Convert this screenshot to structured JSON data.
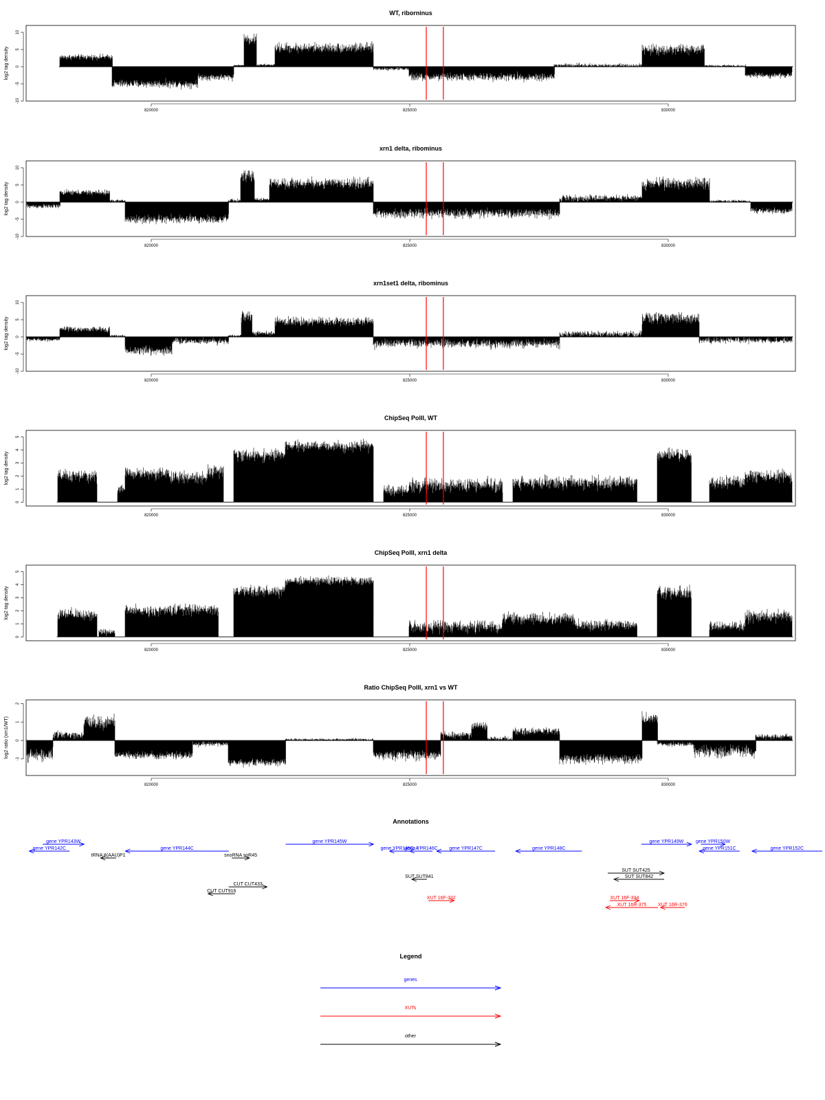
{
  "chart_data": [
    {
      "type": "area",
      "title": "WT, riborninus",
      "ylabel": "log2 tag density",
      "xlim": [
        817580,
        832460
      ],
      "ylim": [
        -10,
        12
      ],
      "yticks": [
        -10,
        -5,
        0,
        5,
        10
      ],
      "xticks": [
        820000,
        825000,
        830000
      ],
      "markers": [
        825320,
        825650
      ],
      "segments": [
        {
          "x": [
            818240,
            819250
          ],
          "level": 2.8,
          "var": 1.2
        },
        {
          "x": [
            819250,
            820900
          ],
          "level": -5.0,
          "var": 1.8
        },
        {
          "x": [
            820900,
            821600
          ],
          "level": -3.0,
          "var": 1.5
        },
        {
          "x": [
            821600,
            821800
          ],
          "level": 0.4,
          "var": 0.3
        },
        {
          "x": [
            821800,
            822040
          ],
          "level": 8.0,
          "var": 2.5
        },
        {
          "x": [
            822040,
            822400
          ],
          "level": 0.5,
          "var": 0.5
        },
        {
          "x": [
            822400,
            824300
          ],
          "level": 5.5,
          "var": 2.2
        },
        {
          "x": [
            824300,
            825000
          ],
          "level": -0.6,
          "var": 0.8
        },
        {
          "x": [
            825000,
            827800
          ],
          "level": -3.0,
          "var": 1.8
        },
        {
          "x": [
            827800,
            829500
          ],
          "level": 0.4,
          "var": 0.9
        },
        {
          "x": [
            829500,
            830700
          ],
          "level": 5.0,
          "var": 2.3
        },
        {
          "x": [
            830700,
            831500
          ],
          "level": 0.3,
          "var": 0.5
        },
        {
          "x": [
            831500,
            832400
          ],
          "level": -2.5,
          "var": 1.2
        }
      ]
    },
    {
      "type": "area",
      "title": "xrn1 delta, ribominus",
      "ylabel": "log2 tag density",
      "xlim": [
        817580,
        832460
      ],
      "ylim": [
        -10,
        12
      ],
      "yticks": [
        -10,
        -5,
        0,
        5,
        10
      ],
      "xticks": [
        820000,
        825000,
        830000
      ],
      "markers": [
        825320,
        825650
      ],
      "segments": [
        {
          "x": [
            817600,
            818240
          ],
          "level": -1.2,
          "var": 1.0
        },
        {
          "x": [
            818240,
            819200
          ],
          "level": 2.8,
          "var": 1.2
        },
        {
          "x": [
            819200,
            819500
          ],
          "level": 0.4,
          "var": 0.6
        },
        {
          "x": [
            819500,
            821500
          ],
          "level": -5.0,
          "var": 2.0
        },
        {
          "x": [
            821500,
            821740
          ],
          "level": 0.5,
          "var": 0.8
        },
        {
          "x": [
            821740,
            822000
          ],
          "level": 7.5,
          "var": 2.5
        },
        {
          "x": [
            822000,
            822300
          ],
          "level": 0.8,
          "var": 0.7
        },
        {
          "x": [
            822300,
            824300
          ],
          "level": 5.5,
          "var": 2.3
        },
        {
          "x": [
            824300,
            827900
          ],
          "level": -3.3,
          "var": 2.0
        },
        {
          "x": [
            827900,
            829500
          ],
          "level": 1.2,
          "var": 1.4
        },
        {
          "x": [
            829500,
            830800
          ],
          "level": 5.5,
          "var": 2.5
        },
        {
          "x": [
            830800,
            831600
          ],
          "level": 0.3,
          "var": 0.6
        },
        {
          "x": [
            831600,
            832400
          ],
          "level": -2.5,
          "var": 1.3
        }
      ]
    },
    {
      "type": "area",
      "title": "xrn1set1 delta, ribominus",
      "ylabel": "log2 tag density",
      "xlim": [
        817580,
        832460
      ],
      "ylim": [
        -10,
        12
      ],
      "yticks": [
        -10,
        -5,
        0,
        5,
        10
      ],
      "xticks": [
        820000,
        825000,
        830000
      ],
      "markers": [
        825320,
        825650
      ],
      "segments": [
        {
          "x": [
            817600,
            818240
          ],
          "level": -0.8,
          "var": 0.8
        },
        {
          "x": [
            818240,
            819200
          ],
          "level": 2.2,
          "var": 1.2
        },
        {
          "x": [
            819200,
            819500
          ],
          "level": 0.3,
          "var": 0.5
        },
        {
          "x": [
            819500,
            820400
          ],
          "level": -4.0,
          "var": 2.2
        },
        {
          "x": [
            820400,
            821500
          ],
          "level": -1.2,
          "var": 1.5
        },
        {
          "x": [
            821500,
            821750
          ],
          "level": 0.3,
          "var": 0.5
        },
        {
          "x": [
            821750,
            821950
          ],
          "level": 6.0,
          "var": 2.0
        },
        {
          "x": [
            821950,
            822400
          ],
          "level": 1.0,
          "var": 1.0
        },
        {
          "x": [
            822400,
            824300
          ],
          "level": 4.5,
          "var": 2.0
        },
        {
          "x": [
            824300,
            827900
          ],
          "level": -2.0,
          "var": 2.0
        },
        {
          "x": [
            827900,
            829500
          ],
          "level": 0.8,
          "var": 1.5
        },
        {
          "x": [
            829500,
            830600
          ],
          "level": 5.5,
          "var": 2.5
        },
        {
          "x": [
            830600,
            832400
          ],
          "level": -1.0,
          "var": 1.4
        }
      ]
    },
    {
      "type": "area",
      "title": "ChipSeq PolII, WT",
      "ylabel": "log2 tag density",
      "xlim": [
        817580,
        832460
      ],
      "ylim": [
        -0.3,
        5.5
      ],
      "yticks": [
        0,
        1,
        2,
        3,
        4,
        5
      ],
      "xticks": [
        820000,
        825000,
        830000
      ],
      "markers": [
        825320,
        825650
      ],
      "segments": [
        {
          "x": [
            818200,
            818950
          ],
          "level": 2.0,
          "var": 0.7
        },
        {
          "x": [
            819350,
            819500
          ],
          "level": 1.0,
          "var": 0.5
        },
        {
          "x": [
            819500,
            820350
          ],
          "level": 2.2,
          "var": 0.7
        },
        {
          "x": [
            820350,
            821100
          ],
          "level": 1.9,
          "var": 0.7
        },
        {
          "x": [
            821100,
            821400
          ],
          "level": 2.4,
          "var": 0.7
        },
        {
          "x": [
            821600,
            822600
          ],
          "level": 3.6,
          "var": 0.7
        },
        {
          "x": [
            822600,
            824300
          ],
          "level": 4.3,
          "var": 0.6
        },
        {
          "x": [
            824500,
            825000
          ],
          "level": 0.9,
          "var": 0.6
        },
        {
          "x": [
            825000,
            826800
          ],
          "level": 1.3,
          "var": 0.8
        },
        {
          "x": [
            827000,
            829400
          ],
          "level": 1.5,
          "var": 0.8
        },
        {
          "x": [
            829800,
            830450
          ],
          "level": 3.6,
          "var": 0.7
        },
        {
          "x": [
            830800,
            831500
          ],
          "level": 1.5,
          "var": 0.7
        },
        {
          "x": [
            831500,
            832400
          ],
          "level": 2.0,
          "var": 0.7
        }
      ]
    },
    {
      "type": "area",
      "title": "ChipSeq PolII, xrn1 delta",
      "ylabel": "log2 tag density",
      "xlim": [
        817580,
        832460
      ],
      "ylim": [
        -0.3,
        5.5
      ],
      "yticks": [
        0,
        1,
        2,
        3,
        4,
        5
      ],
      "xticks": [
        820000,
        825000,
        830000
      ],
      "markers": [
        825320,
        825650
      ],
      "segments": [
        {
          "x": [
            818200,
            818950
          ],
          "level": 1.7,
          "var": 0.7
        },
        {
          "x": [
            819000,
            819300
          ],
          "level": 0.4,
          "var": 0.4
        },
        {
          "x": [
            819500,
            820350
          ],
          "level": 2.0,
          "var": 0.6
        },
        {
          "x": [
            820350,
            821300
          ],
          "level": 2.1,
          "var": 0.6
        },
        {
          "x": [
            821600,
            822600
          ],
          "level": 3.5,
          "var": 0.7
        },
        {
          "x": [
            822600,
            824300
          ],
          "level": 4.3,
          "var": 0.5
        },
        {
          "x": [
            825000,
            826800
          ],
          "level": 0.8,
          "var": 0.7
        },
        {
          "x": [
            826800,
            828200
          ],
          "level": 1.4,
          "var": 0.7
        },
        {
          "x": [
            828200,
            829400
          ],
          "level": 0.9,
          "var": 0.6
        },
        {
          "x": [
            829800,
            830450
          ],
          "level": 3.4,
          "var": 0.7
        },
        {
          "x": [
            830800,
            831500
          ],
          "level": 0.8,
          "var": 0.6
        },
        {
          "x": [
            831500,
            832400
          ],
          "level": 1.6,
          "var": 0.7
        }
      ]
    },
    {
      "type": "area",
      "title": "Ratio ChipSeq PolII, xrn1 vs WT",
      "ylabel": "log2 ratio (xrn1/WT)",
      "xlim": [
        817580,
        832460
      ],
      "ylim": [
        -1.9,
        2.2
      ],
      "yticks": [
        -1,
        0,
        1,
        2
      ],
      "xticks": [
        820000,
        825000,
        830000
      ],
      "markers": [
        825320,
        825650
      ],
      "segments": [
        {
          "x": [
            817600,
            818100
          ],
          "level": -0.8,
          "var": 0.5
        },
        {
          "x": [
            818100,
            818700
          ],
          "level": 0.3,
          "var": 0.3
        },
        {
          "x": [
            818700,
            819300
          ],
          "level": 1.0,
          "var": 0.6
        },
        {
          "x": [
            819300,
            820800
          ],
          "level": -0.8,
          "var": 0.3
        },
        {
          "x": [
            820800,
            821500
          ],
          "level": -0.2,
          "var": 0.2
        },
        {
          "x": [
            821500,
            822600
          ],
          "level": -1.2,
          "var": 0.3
        },
        {
          "x": [
            822600,
            824300
          ],
          "level": 0.05,
          "var": 0.1
        },
        {
          "x": [
            824300,
            825600
          ],
          "level": -0.8,
          "var": 0.4
        },
        {
          "x": [
            825600,
            826200
          ],
          "level": 0.3,
          "var": 0.3
        },
        {
          "x": [
            826200,
            826500
          ],
          "level": 0.8,
          "var": 0.3
        },
        {
          "x": [
            826500,
            827000
          ],
          "level": 0.1,
          "var": 0.2
        },
        {
          "x": [
            827000,
            827900
          ],
          "level": 0.5,
          "var": 0.3
        },
        {
          "x": [
            827900,
            829500
          ],
          "level": -1.0,
          "var": 0.4
        },
        {
          "x": [
            829500,
            829800
          ],
          "level": 1.2,
          "var": 0.5
        },
        {
          "x": [
            829800,
            830500
          ],
          "level": -0.2,
          "var": 0.2
        },
        {
          "x": [
            830500,
            831700
          ],
          "level": -0.6,
          "var": 0.5
        },
        {
          "x": [
            831700,
            832400
          ],
          "level": 0.2,
          "var": 0.2
        }
      ]
    }
  ],
  "annotations": {
    "title": "Annotations",
    "features": [
      {
        "label": "gene YPR143W",
        "type": "genes",
        "strand": "+",
        "x1": 817900,
        "x2": 818700,
        "row": 0
      },
      {
        "label": "gene YPR142C",
        "type": "genes",
        "strand": "-",
        "x1": 817640,
        "x2": 818420,
        "row": 1
      },
      {
        "label": "gene YPR144C",
        "type": "genes",
        "strand": "-",
        "x1": 819500,
        "x2": 821500,
        "row": 1
      },
      {
        "label": "tRNA tI(AAU)P1",
        "type": "other",
        "strand": "-",
        "x1": 819020,
        "x2": 819320,
        "row": 2
      },
      {
        "label": "snoRNA snR45",
        "type": "other",
        "strand": "+",
        "x1": 821560,
        "x2": 821900,
        "row": 2
      },
      {
        "label": "gene YPR145W",
        "type": "genes",
        "strand": "+",
        "x1": 822600,
        "x2": 824300,
        "row": 0
      },
      {
        "label": "gene YPR145C-A",
        "type": "genes",
        "strand": "-",
        "x1": 824610,
        "x2": 825000,
        "row": 1
      },
      {
        "label": "gene YPR146C",
        "type": "genes",
        "strand": "-",
        "x1": 825000,
        "x2": 825440,
        "row": 1
      },
      {
        "label": "gene YPR147C",
        "type": "genes",
        "strand": "-",
        "x1": 825520,
        "x2": 826650,
        "row": 1
      },
      {
        "label": "gene YPR148C",
        "type": "genes",
        "strand": "-",
        "x1": 827050,
        "x2": 828330,
        "row": 1
      },
      {
        "label": "gene YPR149W",
        "type": "genes",
        "strand": "+",
        "x1": 829480,
        "x2": 830450,
        "row": 0
      },
      {
        "label": "gene YPR150W",
        "type": "genes",
        "strand": "+",
        "x1": 830630,
        "x2": 831100,
        "row": 0
      },
      {
        "label": "gene YPR151C",
        "type": "genes",
        "strand": "-",
        "x1": 830600,
        "x2": 831380,
        "row": 1
      },
      {
        "label": "gene YPR152C",
        "type": "genes",
        "strand": "-",
        "x1": 831620,
        "x2": 833200,
        "row": 1
      },
      {
        "label": "SUT SUT425",
        "type": "other",
        "strand": "+",
        "x1": 828830,
        "x2": 829920,
        "row": 3
      },
      {
        "label": "SUT SUT842",
        "type": "other",
        "strand": "-",
        "x1": 828950,
        "x2": 829920,
        "row": 4
      },
      {
        "label": "SUT SUT841",
        "type": "other",
        "strand": "-",
        "x1": 825040,
        "x2": 825330,
        "row": 4
      },
      {
        "label": "CUT CUT433",
        "type": "other",
        "strand": "+",
        "x1": 821500,
        "x2": 822240,
        "row": 5
      },
      {
        "label": "CUT CUT916",
        "type": "other",
        "strand": "-",
        "x1": 821100,
        "x2": 821620,
        "row": 6
      },
      {
        "label": "XUT 16F-332",
        "type": "XUTs",
        "strand": "+",
        "x1": 825360,
        "x2": 825860,
        "row": 7
      },
      {
        "label": "XUT 16F-334",
        "type": "XUTs",
        "strand": "+",
        "x1": 828870,
        "x2": 829440,
        "row": 7
      },
      {
        "label": "XUT 16R-375",
        "type": "XUTs",
        "strand": "-",
        "x1": 828790,
        "x2": 829800,
        "row": 8
      },
      {
        "label": "XUT 16R-376",
        "type": "XUTs",
        "strand": "-",
        "x1": 829850,
        "x2": 830320,
        "row": 8
      }
    ]
  },
  "legend": {
    "title": "Legend",
    "items": [
      {
        "label": "genes",
        "color": "#0000ff"
      },
      {
        "label": "XUTs",
        "color": "#ff0000"
      },
      {
        "label": "other",
        "color": "#000000"
      }
    ]
  },
  "colors": {
    "genes": "#0000ff",
    "XUTs": "#ff0000",
    "other": "#000000",
    "marker": "#ff0000",
    "signal": "#000000"
  }
}
